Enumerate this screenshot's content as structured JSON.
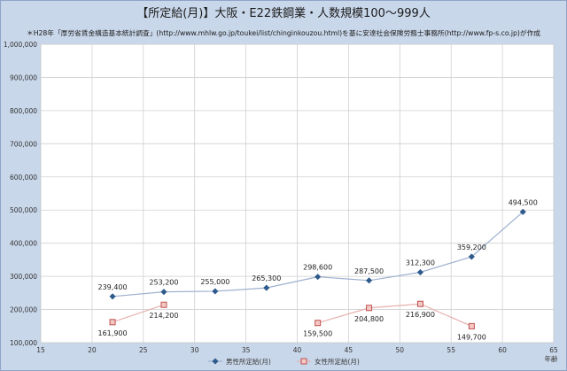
{
  "chart_data": {
    "type": "line",
    "title": "【所定給(月)】大阪・E22鉄鋼業・人数規模100～999人",
    "subtitle": "＊H28年「厚労省賃金構造基本統計調査」(http://www.mhlw.go.jp/toukei/list/chinginkouzou.html)を基に安達社会保険労務士事務所(http://www.fp-s.co.jp)が作成",
    "xlabel": "年齢",
    "ylabel": "",
    "xlim": [
      15,
      65
    ],
    "ylim": [
      100000,
      1000000
    ],
    "x_ticks": [
      15,
      20,
      25,
      30,
      35,
      40,
      45,
      50,
      55,
      60,
      65
    ],
    "y_ticks": [
      100000,
      200000,
      300000,
      400000,
      500000,
      600000,
      700000,
      800000,
      900000,
      1000000
    ],
    "x_tick_labels": [
      "15",
      "20",
      "25",
      "30",
      "35",
      "40",
      "45",
      "50",
      "55",
      "60",
      "65"
    ],
    "y_tick_labels": [
      "100,000",
      "200,000",
      "300,000",
      "400,000",
      "500,000",
      "600,000",
      "700,000",
      "800,000",
      "900,000",
      "1,000,000"
    ],
    "grid": true,
    "legend_position": "bottom",
    "series": [
      {
        "name": "男性所定給(月)",
        "color": "#2e5a8c",
        "line_color": "#9db0cf",
        "marker": "diamond",
        "points": [
          {
            "x": 22,
            "y": 239400,
            "label": "239,400"
          },
          {
            "x": 27,
            "y": 253200,
            "label": "253,200"
          },
          {
            "x": 32,
            "y": 255000,
            "label": "255,000"
          },
          {
            "x": 37,
            "y": 265300,
            "label": "265,300"
          },
          {
            "x": 42,
            "y": 298600,
            "label": "298,600"
          },
          {
            "x": 47,
            "y": 287500,
            "label": "287,500"
          },
          {
            "x": 52,
            "y": 312300,
            "label": "312,300"
          },
          {
            "x": 57,
            "y": 359200,
            "label": "359,200"
          },
          {
            "x": 62,
            "y": 494500,
            "label": "494,500"
          }
        ]
      },
      {
        "name": "女性所定給(月)",
        "color": "#c0504d",
        "line_color": "#e6b1ae",
        "marker": "square",
        "segments": [
          [
            {
              "x": 22,
              "y": 161900,
              "label": "161,900"
            },
            {
              "x": 27,
              "y": 214200,
              "label": "214,200"
            }
          ],
          [
            {
              "x": 42,
              "y": 159500,
              "label": "159,500"
            },
            {
              "x": 47,
              "y": 204800,
              "label": "204,800"
            },
            {
              "x": 52,
              "y": 216900,
              "label": "216,900"
            },
            {
              "x": 57,
              "y": 149700,
              "label": "149,700"
            }
          ]
        ]
      }
    ]
  }
}
